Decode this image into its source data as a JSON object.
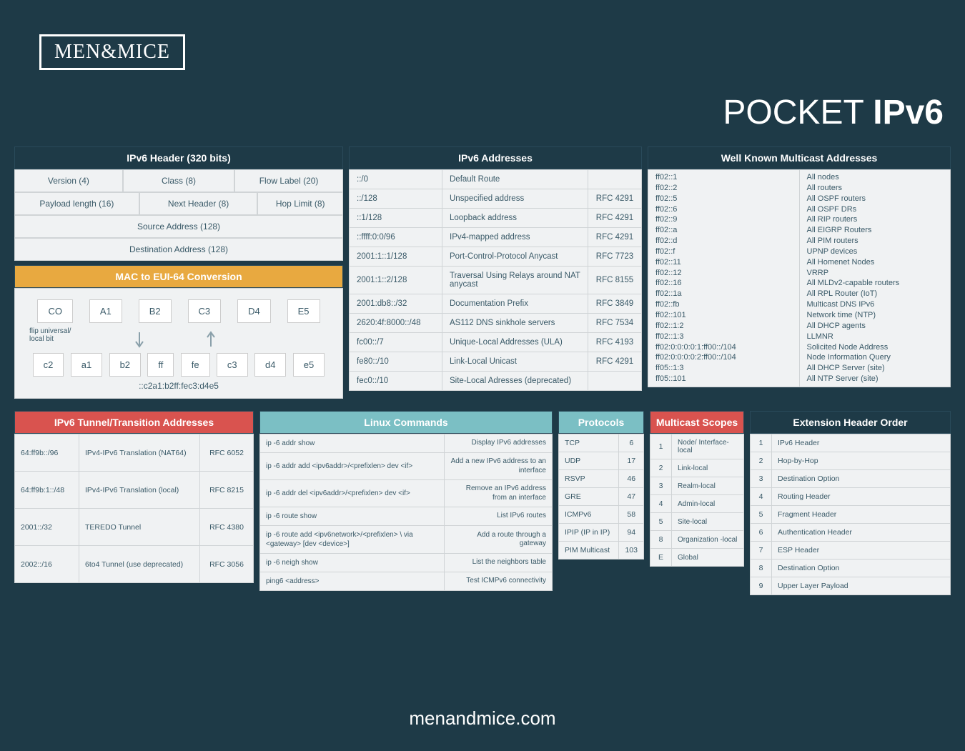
{
  "brand": "MEN&MICE",
  "title_light": "POCKET ",
  "title_bold": "IPv6",
  "footer": "menandmice.com",
  "colors": {
    "bg": "#1e3a47",
    "cell_bg": "#f0f2f3",
    "border": "#d0d4d6",
    "red": "#d9534f",
    "yellow": "#e8a940",
    "teal": "#7bbfc4"
  },
  "ipv6_header": {
    "title": "IPv6 Header (320 bits)",
    "rows": [
      [
        {
          "t": "Version (4)",
          "w": "33%"
        },
        {
          "t": "Class (8)",
          "w": "34%"
        },
        {
          "t": "Flow Label (20)",
          "w": "33%"
        }
      ],
      [
        {
          "t": "Payload length (16)",
          "w": "38%"
        },
        {
          "t": "Next Header (8)",
          "w": "36%"
        },
        {
          "t": "Hop Limit (8)",
          "w": "26%"
        }
      ],
      [
        {
          "t": "Source Address (128)",
          "w": "100%"
        }
      ],
      [
        {
          "t": "Destination Address (128)",
          "w": "100%"
        }
      ]
    ]
  },
  "mac": {
    "title": "MAC to EUI-64 Conversion",
    "top": [
      "CO",
      "A1",
      "B2",
      "C3",
      "D4",
      "E5"
    ],
    "flip": "flip universal/\nlocal bit",
    "bottom": [
      "c2",
      "a1",
      "b2",
      "ff",
      "fe",
      "c3",
      "d4",
      "e5"
    ],
    "result": "::c2a1:b2ff:fec3:d4e5"
  },
  "addresses": {
    "title": "IPv6  Addresses",
    "rows": [
      [
        "::/0",
        "Default Route",
        ""
      ],
      [
        "::/128",
        "Unspecified address",
        "RFC 4291"
      ],
      [
        "::1/128",
        "Loopback address",
        "RFC 4291"
      ],
      [
        "::ffff:0:0/96",
        "IPv4-mapped address",
        "RFC 4291"
      ],
      [
        "2001:1::1/128",
        "Port-Control-Protocol Anycast",
        "RFC 7723"
      ],
      [
        "2001:1::2/128",
        "Traversal Using Relays around NAT anycast",
        "RFC 8155"
      ],
      [
        "2001:db8::/32",
        "Documentation Prefix",
        "RFC 3849"
      ],
      [
        "2620:4f:8000::/48",
        "AS112 DNS sinkhole servers",
        "RFC 7534"
      ],
      [
        "fc00::/7",
        "Unique-Local Addresses (ULA)",
        "RFC 4193"
      ],
      [
        "fe80::/10",
        "Link-Local Unicast",
        "RFC 4291"
      ],
      [
        "fec0::/10",
        "Site-Local Adresses (deprecated)",
        ""
      ]
    ]
  },
  "multicast": {
    "title": "Well Known Multicast Addresses",
    "left": [
      "ff02::1",
      "ff02::2",
      "ff02::5",
      "ff02::6",
      "ff02::9",
      "ff02::a",
      "ff02::d",
      "ff02::f",
      "ff02::11",
      "ff02::12",
      "ff02::16",
      "ff02::1a",
      "ff02::fb",
      "ff02::101",
      "ff02::1:2",
      "ff02::1:3",
      "ff02:0:0:0:0:1:ff00::/104",
      "ff02:0:0:0:0:2:ff00::/104",
      "ff05::1:3",
      "ff05::101"
    ],
    "right": [
      "All nodes",
      "All routers",
      "All OSPF routers",
      "All OSPF DRs",
      "All RIP routers",
      "All EIGRP Routers",
      "All PIM routers",
      "UPNP devices",
      "All Homenet Nodes",
      "VRRP",
      "All MLDv2-capable routers",
      "All RPL Router (IoT)",
      "Multicast DNS IPv6",
      "Network time (NTP)",
      "All DHCP agents",
      "LLMNR",
      "Solicited Node Address",
      "Node Information Query",
      "All DHCP Server (site)",
      "All NTP Server (site)"
    ]
  },
  "tunnel": {
    "title": "IPv6 Tunnel/Transition Addresses",
    "rows": [
      [
        "64:ff9b::/96",
        "IPv4-IPv6 Translation (NAT64)",
        "RFC 6052"
      ],
      [
        "64:ff9b:1::/48",
        "IPv4-IPv6 Translation (local)",
        "RFC 8215"
      ],
      [
        "2001::/32",
        "TEREDO Tunnel",
        "RFC 4380"
      ],
      [
        "2002::/16",
        "6to4 Tunnel (use deprecated)",
        "RFC 3056"
      ]
    ]
  },
  "linux": {
    "title": "Linux Commands",
    "rows": [
      [
        "ip -6 addr show",
        "Display IPv6 addresses"
      ],
      [
        "ip -6 addr add <ipv6addr>/<prefixlen> dev <if>",
        "Add a new IPv6 address to an interface"
      ],
      [
        "ip -6 addr del <ipv6addr>/<prefixlen> dev <if>",
        "Remove an IPv6 address from an interface"
      ],
      [
        "ip -6 route show",
        "List IPv6 routes"
      ],
      [
        "ip -6 route add <ipv6network>/<prefixlen> \\ via <gateway> [dev <device>]",
        "Add a route through a gateway"
      ],
      [
        "ip -6 neigh show",
        "List the neighbors table"
      ],
      [
        "ping6 <address>",
        "Test ICMPv6 connectivity"
      ]
    ]
  },
  "protocols": {
    "title": "Protocols",
    "rows": [
      [
        "TCP",
        "6"
      ],
      [
        "UDP",
        "17"
      ],
      [
        "RSVP",
        "46"
      ],
      [
        "GRE",
        "47"
      ],
      [
        "ICMPv6",
        "58"
      ],
      [
        "IPIP (IP in IP)",
        "94"
      ],
      [
        "PIM Multicast",
        "103"
      ]
    ]
  },
  "scopes": {
    "title": "Multicast Scopes",
    "rows": [
      [
        "1",
        "Node/ Interface-local"
      ],
      [
        "2",
        "Link-local"
      ],
      [
        "3",
        "Realm-local"
      ],
      [
        "4",
        "Admin-local"
      ],
      [
        "5",
        "Site-local"
      ],
      [
        "8",
        "Organization -local"
      ],
      [
        "E",
        "Global"
      ]
    ]
  },
  "ext": {
    "title": "Extension Header Order",
    "rows": [
      [
        "1",
        "IPv6 Header"
      ],
      [
        "2",
        "Hop-by-Hop"
      ],
      [
        "3",
        "Destination Option"
      ],
      [
        "4",
        "Routing Header"
      ],
      [
        "5",
        "Fragment Header"
      ],
      [
        "6",
        "Authentication Header"
      ],
      [
        "7",
        "ESP Header"
      ],
      [
        "8",
        "Destination Option"
      ],
      [
        "9",
        "Upper Layer Payload"
      ]
    ]
  }
}
